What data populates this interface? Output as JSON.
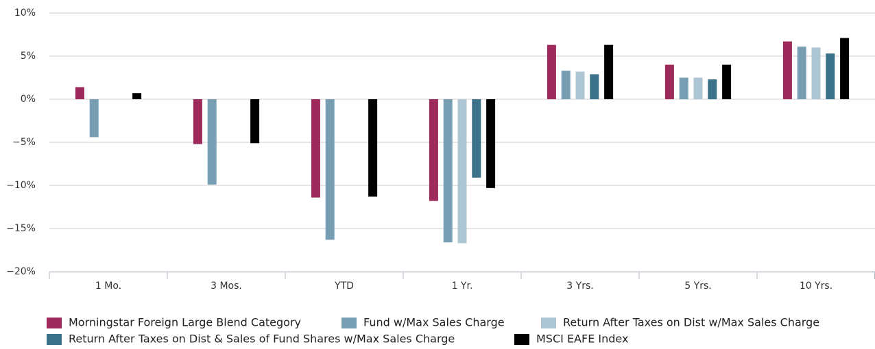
{
  "chart_data": {
    "type": "bar",
    "categories": [
      "1 Mo.",
      "3 Mos.",
      "YTD",
      "1 Yr.",
      "3 Yrs.",
      "5 Yrs.",
      "10 Yrs."
    ],
    "series": [
      {
        "name": "Morningstar Foreign Large Blend Category",
        "color": "#9e2a5b",
        "values": [
          1.4,
          -5.2,
          -11.4,
          -11.8,
          6.3,
          4.0,
          6.7
        ]
      },
      {
        "name": "Fund w/Max Sales Charge",
        "color": "#789eb4",
        "values": [
          -4.4,
          -9.9,
          -16.3,
          -16.6,
          3.3,
          2.5,
          6.1
        ]
      },
      {
        "name": "Return After Taxes on Dist w/Max Sales Charge",
        "color": "#aec6d3",
        "values": [
          null,
          null,
          null,
          -16.7,
          3.2,
          2.5,
          6.0
        ]
      },
      {
        "name": "Return After Taxes on Dist & Sales of Fund Shares w/Max Sales Charge",
        "color": "#3b7189",
        "values": [
          null,
          null,
          null,
          -9.1,
          2.9,
          2.3,
          5.3
        ]
      },
      {
        "name": "MSCI EAFE Index",
        "color": "#000000",
        "values": [
          0.7,
          -5.1,
          -11.3,
          -10.3,
          6.3,
          4.0,
          7.1
        ]
      }
    ],
    "ylim": [
      -20,
      10
    ],
    "yticks": [
      {
        "value": -20,
        "label": "−20%"
      },
      {
        "value": -15,
        "label": "−15%"
      },
      {
        "value": -10,
        "label": "−10%"
      },
      {
        "value": -5,
        "label": "−5%"
      },
      {
        "value": 0,
        "label": "0%"
      },
      {
        "value": 5,
        "label": "5%"
      },
      {
        "value": 10,
        "label": "10%"
      }
    ],
    "grid": true
  }
}
